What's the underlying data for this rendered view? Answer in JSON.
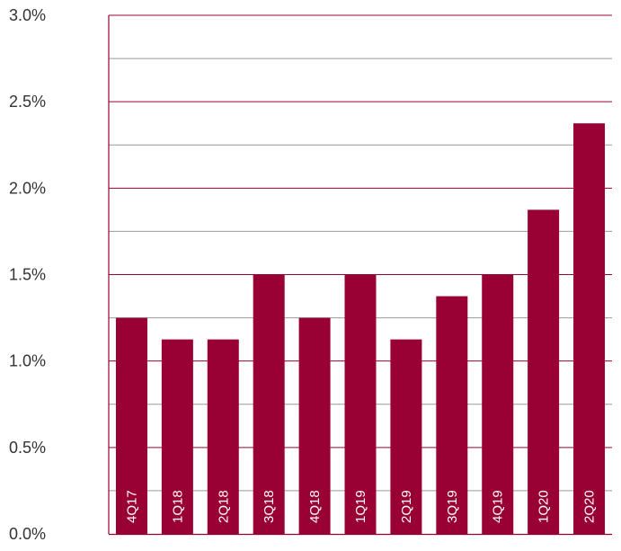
{
  "chart_data": {
    "type": "bar",
    "title": "",
    "xlabel": "",
    "ylabel": "",
    "categories": [
      "4Q17",
      "1Q18",
      "2Q18",
      "3Q18",
      "4Q18",
      "1Q19",
      "2Q19",
      "3Q19",
      "4Q19",
      "1Q20",
      "2Q20"
    ],
    "values": [
      1.25,
      1.125,
      1.125,
      1.5,
      1.25,
      1.5,
      1.125,
      1.375,
      1.5,
      1.875,
      2.375
    ],
    "ylim": [
      0,
      3.0
    ],
    "yticks": [
      "0.0%",
      "0.5%",
      "1.0%",
      "1.5%",
      "2.0%",
      "2.5%",
      "3.0%"
    ],
    "grid": "horizontal, every 0.25%",
    "legend": "none",
    "bar_color": "#990033",
    "grid_color": "#990033",
    "minor_grid_color": "#9a9a9a"
  }
}
